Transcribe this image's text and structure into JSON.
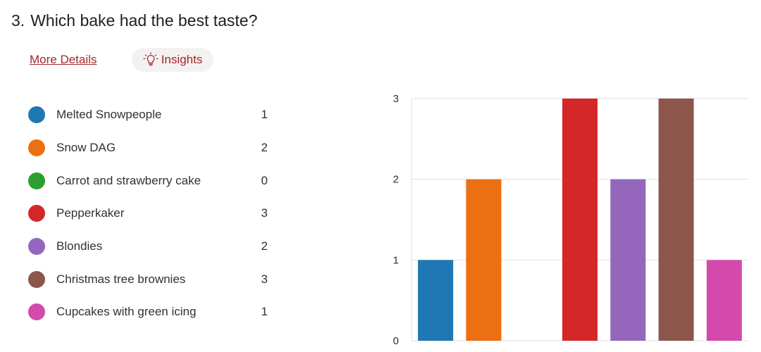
{
  "question": {
    "number": "3.",
    "text": "Which bake had the best taste?"
  },
  "links": {
    "more_details": "More Details",
    "insights": "Insights"
  },
  "icons": {
    "insights": "lightbulb-icon"
  },
  "colors": {
    "link": "#a4262c",
    "gridline": "#e1dfdd"
  },
  "chart_data": {
    "type": "bar",
    "categories": [
      "Melted Snowpeople",
      "Snow DAG",
      "Carrot and strawberry cake",
      "Pepperkaker",
      "Blondies",
      "Christmas tree brownies",
      "Cupcakes with green icing"
    ],
    "values": [
      1,
      2,
      0,
      3,
      2,
      3,
      1
    ],
    "colors": [
      "#1f77b4",
      "#ec7012",
      "#2ca02c",
      "#d62728",
      "#9467bd",
      "#8c564b",
      "#d34aac"
    ],
    "y_ticks": [
      0,
      1,
      2,
      3
    ],
    "ylim": [
      0,
      3
    ],
    "grid": true,
    "legend": "left"
  }
}
